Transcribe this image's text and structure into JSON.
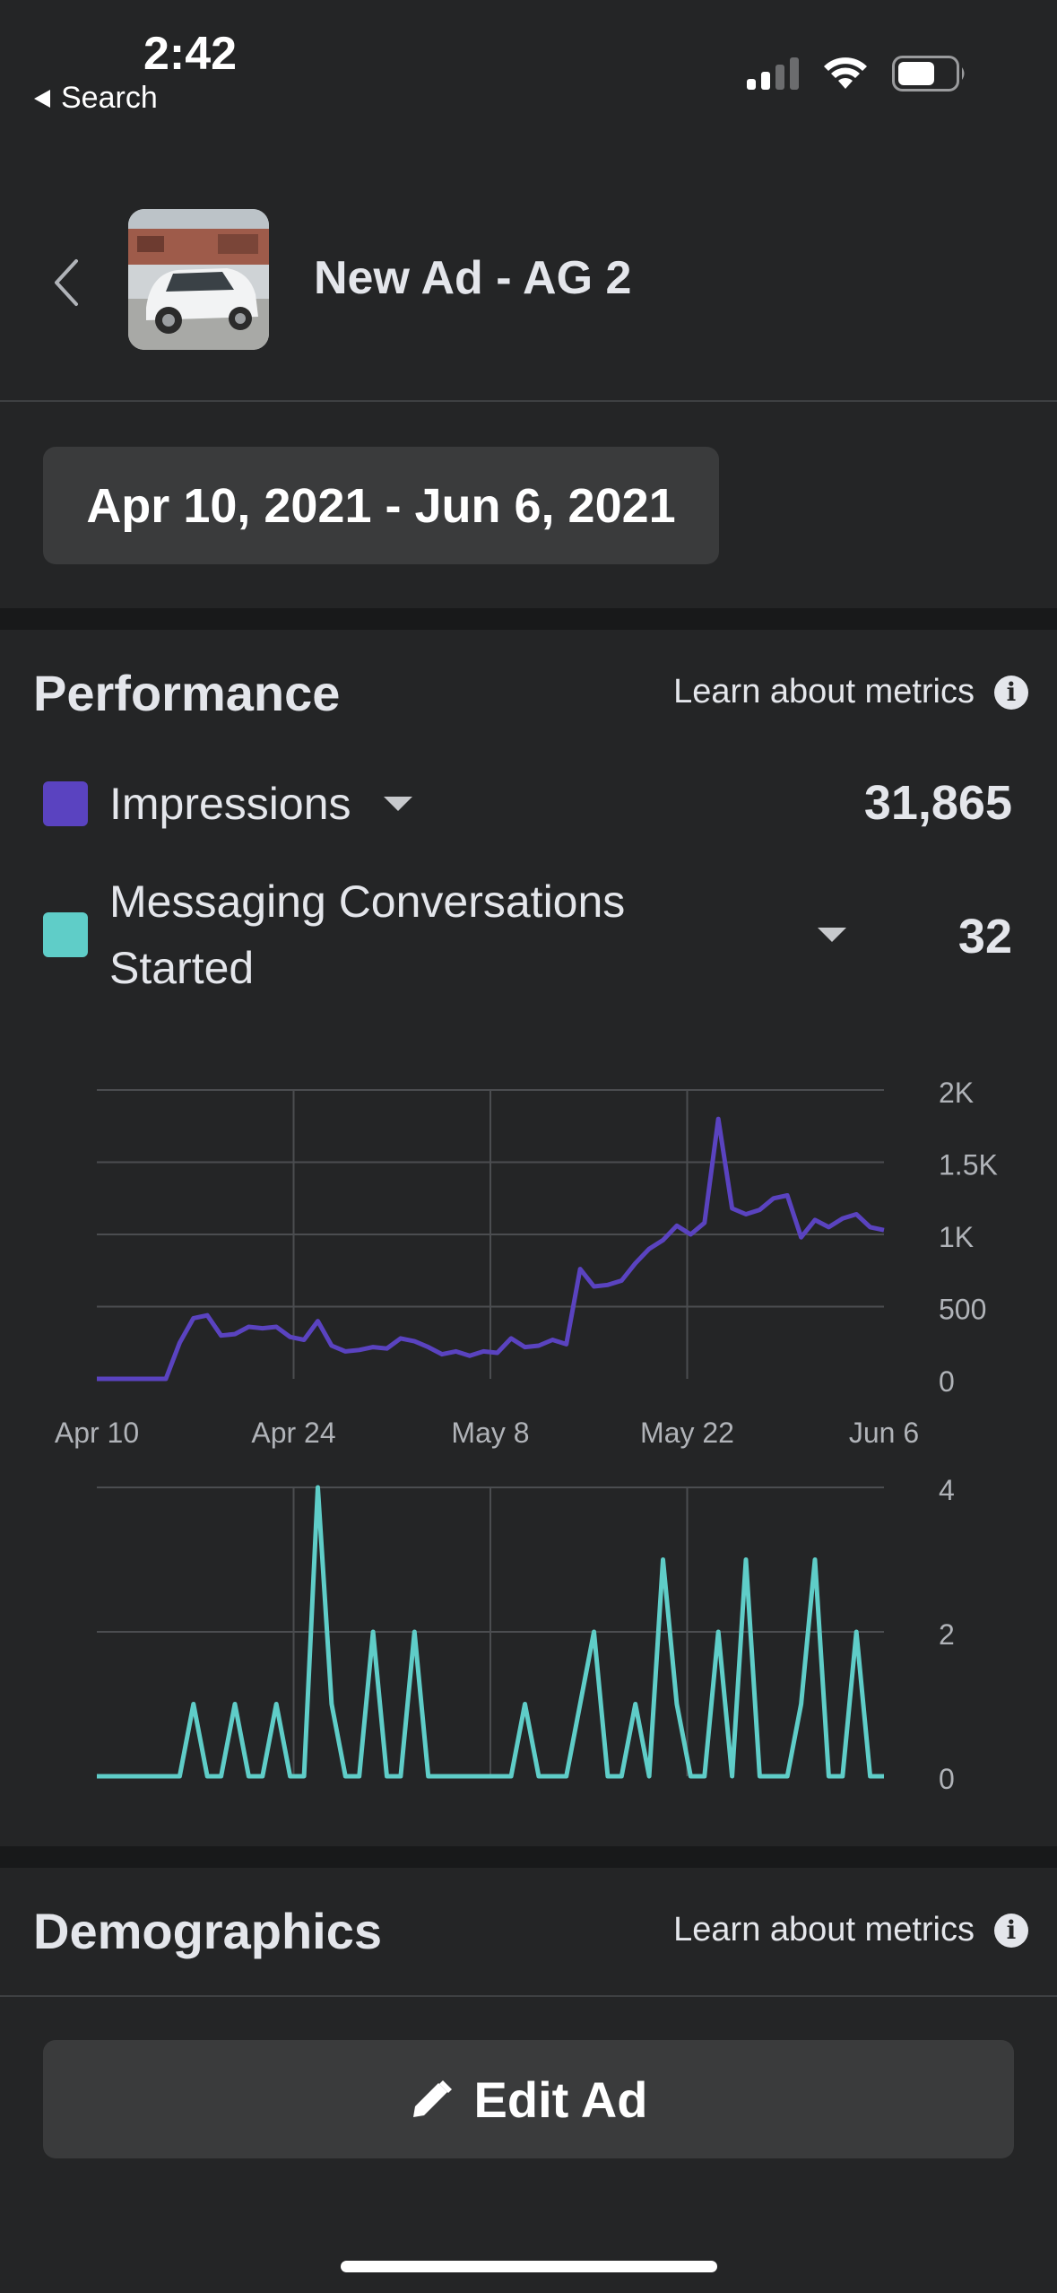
{
  "status_bar": {
    "time": "2:42",
    "back_label": "Search"
  },
  "header": {
    "title": "New Ad - AG 2"
  },
  "date_range": "Apr 10, 2021 - Jun 6, 2021",
  "performance": {
    "title": "Performance",
    "learn_label": "Learn about metrics",
    "metrics": [
      {
        "label": "Impressions",
        "value": "31,865",
        "color": "#5a43c0"
      },
      {
        "label": "Messaging Conversations Started",
        "value": "32",
        "color": "#5fcdc8"
      }
    ]
  },
  "demographics": {
    "title": "Demographics",
    "learn_label": "Learn about metrics"
  },
  "edit_button": {
    "label": "Edit Ad"
  },
  "chart_data": [
    {
      "type": "line",
      "series_name": "Impressions",
      "color": "#5a43c0",
      "x_tick_labels": [
        "Apr 10",
        "Apr 24",
        "May 8",
        "May 22",
        "Jun 6"
      ],
      "y_tick_labels": [
        "2K",
        "1.5K",
        "1K",
        "500",
        "0"
      ],
      "ylim": [
        0,
        2000
      ],
      "values": [
        0,
        0,
        0,
        0,
        0,
        0,
        250,
        420,
        440,
        300,
        310,
        360,
        350,
        360,
        290,
        270,
        400,
        230,
        190,
        200,
        220,
        210,
        280,
        260,
        220,
        170,
        190,
        160,
        190,
        180,
        280,
        220,
        230,
        270,
        240,
        760,
        640,
        650,
        680,
        800,
        900,
        960,
        1060,
        1000,
        1080,
        1800,
        1180,
        1140,
        1170,
        1250,
        1270,
        980,
        1100,
        1050,
        1110,
        1140,
        1050,
        1030
      ]
    },
    {
      "type": "line",
      "series_name": "Messaging Conversations Started",
      "color": "#5fcdc8",
      "x_tick_labels": [
        "Apr 10",
        "Apr 24",
        "May 8",
        "May 22",
        "Jun 6"
      ],
      "y_tick_labels": [
        "4",
        "2",
        "0"
      ],
      "ylim": [
        0,
        4
      ],
      "values": [
        0,
        0,
        0,
        0,
        0,
        0,
        0,
        1,
        0,
        0,
        1,
        0,
        0,
        1,
        0,
        0,
        4,
        1,
        0,
        0,
        2,
        0,
        0,
        2,
        0,
        0,
        0,
        0,
        0,
        0,
        0,
        1,
        0,
        0,
        0,
        1,
        2,
        0,
        0,
        1,
        0,
        3,
        1,
        0,
        0,
        2,
        0,
        3,
        0,
        0,
        0,
        1,
        3,
        0,
        0,
        2,
        0,
        0
      ]
    }
  ]
}
